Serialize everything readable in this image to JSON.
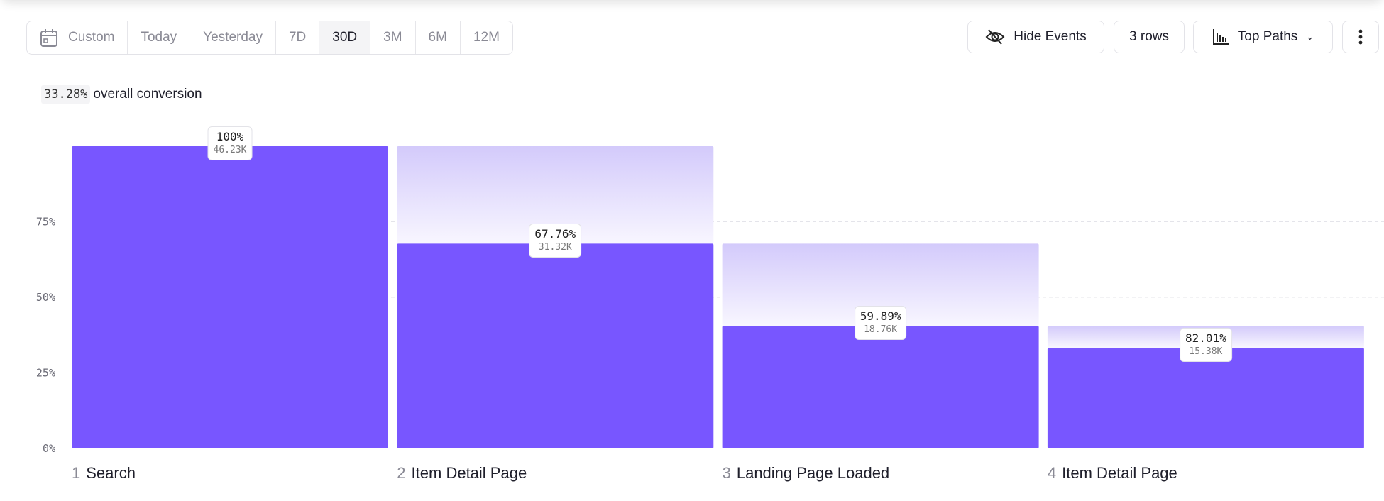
{
  "date_range": {
    "options": [
      "Custom",
      "Today",
      "Yesterday",
      "7D",
      "30D",
      "3M",
      "6M",
      "12M"
    ],
    "selected": "30D"
  },
  "toolbar": {
    "hide_events": "Hide Events",
    "rows": "3 rows",
    "view": "Top Paths"
  },
  "summary": {
    "value": "33.28%",
    "label": "overall conversion"
  },
  "colors": {
    "bar": "#7856ff",
    "ghost": "#d8d0fb"
  },
  "chart_data": {
    "type": "bar",
    "yticks": [
      "0%",
      "25%",
      "50%",
      "75%"
    ],
    "ylim": [
      0,
      100
    ],
    "grid": true,
    "steps": [
      {
        "num": "1",
        "name": "Search",
        "overall_pct": 100,
        "pct_label": "100%",
        "count": "46.23K"
      },
      {
        "num": "2",
        "name": "Item Detail Page",
        "overall_pct": 67.76,
        "pct_label": "67.76%",
        "count": "31.32K"
      },
      {
        "num": "3",
        "name": "Landing Page Loaded",
        "overall_pct": 40.58,
        "pct_label": "59.89%",
        "count": "18.76K"
      },
      {
        "num": "4",
        "name": "Item Detail Page",
        "overall_pct": 33.28,
        "pct_label": "82.01%",
        "count": "15.38K"
      }
    ]
  }
}
